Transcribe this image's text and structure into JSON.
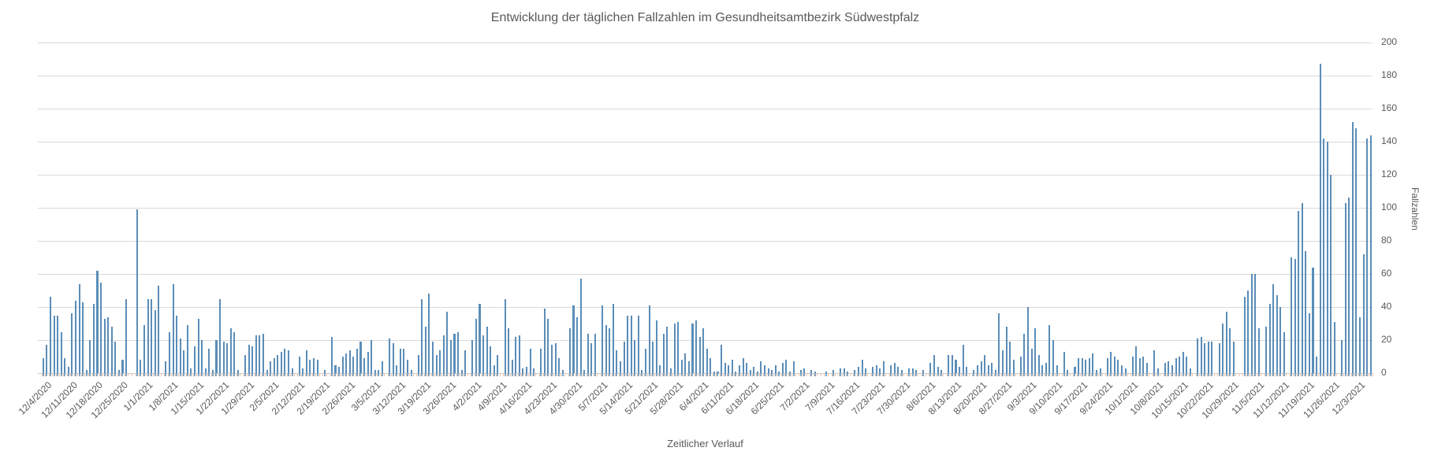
{
  "title": "Entwicklung der täglichen Fallzahlen im Gesundheitsamtbezirk Südwestpfalz",
  "x_axis": {
    "label": "Zeitlicher Verlauf"
  },
  "y_axis": {
    "label": "Fallzahlen",
    "tick_values": [
      0,
      20,
      40,
      60,
      80,
      100,
      120,
      140,
      160,
      180,
      200
    ]
  },
  "colors": {
    "bar": "#5B8DB8",
    "gridline": "#d9d9d9",
    "text": "#595959",
    "axis_tick": "#eec3a7"
  },
  "chart_data": {
    "type": "bar",
    "title": "Entwicklung der täglichen Fallzahlen im Gesundheitsamtbezirk Südwestpfalz",
    "xlabel": "Zeitlicher Verlauf",
    "ylabel": "Fallzahlen",
    "ylim": [
      0,
      200
    ],
    "grid": true,
    "legend": "none",
    "start_date": "12/4/2020",
    "x_tick_interval_days": 7,
    "x_tick_labels": [
      "12/4/2020",
      "12/11/2020",
      "12/18/2020",
      "12/25/2020",
      "1/1/2021",
      "1/8/2021",
      "1/15/2021",
      "1/22/2021",
      "1/29/2021",
      "2/5/2021",
      "2/12/2021",
      "2/19/2021",
      "2/26/2021",
      "3/5/2021",
      "3/12/2021",
      "3/19/2021",
      "3/26/2021",
      "4/2/2021",
      "4/9/2021",
      "4/16/2021",
      "4/23/2021",
      "4/30/2021",
      "5/7/2021",
      "5/14/2021",
      "5/21/2021",
      "5/28/2021",
      "6/4/2021",
      "6/11/2021",
      "6/18/2021",
      "6/25/2021",
      "7/2/2021",
      "7/9/2021",
      "7/16/2021",
      "7/23/2021",
      "7/30/2021",
      "8/6/2021",
      "8/13/2021",
      "8/20/2021",
      "8/27/2021",
      "9/3/2021",
      "9/10/2021",
      "9/17/2021",
      "9/24/2021",
      "10/1/2021",
      "10/8/2021",
      "10/15/2021",
      "10/22/2021",
      "10/29/2021",
      "11/5/2021",
      "11/12/2021",
      "11/19/2021",
      "11/26/2021",
      "12/3/2021"
    ],
    "values": [
      0,
      9,
      17,
      46,
      35,
      35,
      25,
      9,
      4,
      36,
      44,
      54,
      43,
      2,
      20,
      42,
      62,
      55,
      33,
      34,
      28,
      19,
      2,
      8,
      45,
      0,
      0,
      99,
      8,
      29,
      45,
      45,
      38,
      53,
      0,
      7,
      25,
      54,
      35,
      21,
      14,
      29,
      3,
      16,
      33,
      20,
      3,
      15,
      2,
      20,
      45,
      19,
      18,
      27,
      25,
      2,
      0,
      11,
      17,
      16,
      23,
      23,
      24,
      2,
      7,
      9,
      11,
      13,
      15,
      14,
      3,
      0,
      10,
      3,
      14,
      8,
      9,
      8,
      0,
      2,
      0,
      22,
      5,
      4,
      10,
      12,
      14,
      10,
      15,
      19,
      9,
      13,
      20,
      2,
      2,
      7,
      0,
      21,
      18,
      5,
      15,
      15,
      8,
      2,
      0,
      11,
      45,
      28,
      48,
      19,
      11,
      14,
      23,
      37,
      20,
      24,
      25,
      2,
      14,
      0,
      20,
      33,
      42,
      23,
      28,
      16,
      5,
      11,
      0,
      45,
      27,
      8,
      22,
      23,
      3,
      4,
      15,
      3,
      0,
      15,
      39,
      33,
      17,
      18,
      9,
      2,
      0,
      27,
      41,
      34,
      57,
      2,
      24,
      18,
      24,
      0,
      41,
      29,
      27,
      42,
      14,
      7,
      19,
      35,
      35,
      20,
      35,
      2,
      15,
      41,
      19,
      32,
      5,
      24,
      28,
      3,
      30,
      31,
      8,
      12,
      7,
      30,
      32,
      22,
      27,
      15,
      9,
      1,
      1,
      17,
      6,
      5,
      8,
      1,
      5,
      9,
      6,
      2,
      4,
      1,
      7,
      5,
      3,
      2,
      5,
      1,
      6,
      8,
      1,
      7,
      0,
      2,
      3,
      0,
      2,
      1,
      0,
      0,
      1,
      0,
      2,
      0,
      3,
      3,
      1,
      0,
      2,
      4,
      8,
      3,
      0,
      4,
      5,
      3,
      7,
      0,
      5,
      6,
      4,
      2,
      0,
      3,
      3,
      2,
      0,
      2,
      0,
      6,
      11,
      4,
      2,
      0,
      11,
      11,
      8,
      4,
      17,
      4,
      0,
      2,
      5,
      7,
      11,
      5,
      6,
      2,
      36,
      14,
      28,
      19,
      8,
      0,
      10,
      24,
      40,
      15,
      27,
      11,
      5,
      6,
      29,
      20,
      5,
      0,
      13,
      2,
      0,
      4,
      9,
      9,
      8,
      9,
      12,
      2,
      3,
      0,
      9,
      13,
      10,
      8,
      5,
      3,
      0,
      10,
      16,
      9,
      10,
      6,
      0,
      14,
      3,
      0,
      6,
      7,
      5,
      9,
      10,
      13,
      10,
      3,
      0,
      21,
      22,
      18,
      19,
      19,
      0,
      18,
      30,
      37,
      27,
      19,
      0,
      0,
      46,
      50,
      60,
      60,
      27,
      0,
      28,
      42,
      54,
      47,
      40,
      25,
      0,
      70,
      69,
      98,
      103,
      74,
      36,
      64,
      10,
      187,
      142,
      140,
      120,
      31,
      0,
      20,
      103,
      106,
      152,
      148,
      34,
      72,
      142,
      144
    ],
    "bar_color": "#5B8DB8"
  }
}
